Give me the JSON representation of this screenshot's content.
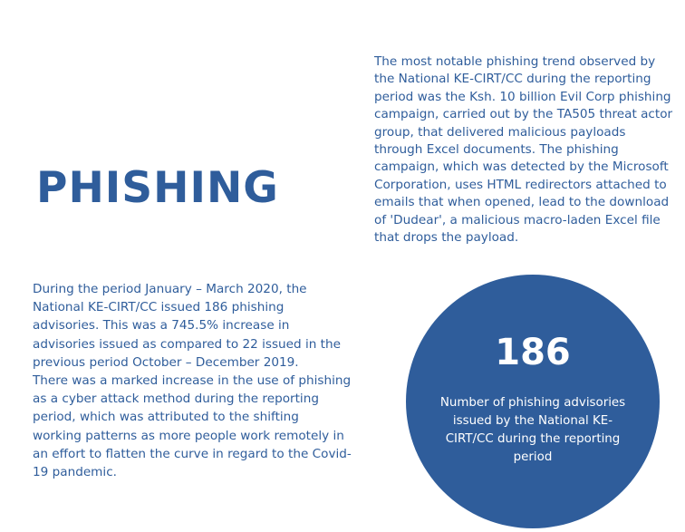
{
  "intro": {
    "text": "The most notable phishing trend observed by the National KE-CIRT/CC during the reporting period was the Ksh. 10 billion Evil Corp phishing campaign, carried out by the TA505 threat actor group, that delivered malicious payloads through Excel documents. The phishing campaign, which was detected by the Microsoft Corporation, uses HTML redirectors attached to emails that when opened, lead to the download of 'Dudear', a malicious macro-laden Excel file that drops the payload."
  },
  "section": {
    "title": "PHISHING"
  },
  "body": {
    "paragraph1": "During the period January – March 2020, the National KE-CIRT/CC issued 186 phishing advisories. This was a 745.5% increase in advisories issued as compared to 22 issued in the previous period October – December 2019.",
    "paragraph2": "There was a marked increase in the use of phishing as a cyber attack method during the reporting period, which was attributed to the shifting working patterns as more people work remotely in an effort to flatten the curve in regard to the Covid-19 pandemic."
  },
  "stat": {
    "value": "186",
    "caption": "Number of phishing advisories issued by the National KE-CIRT/CC during the reporting period"
  },
  "colors": {
    "brand_blue": "#2f5d9b",
    "background": "#ffffff"
  }
}
